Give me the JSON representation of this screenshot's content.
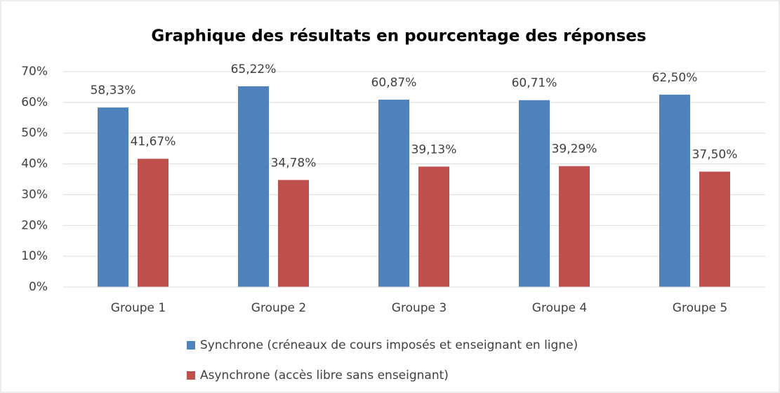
{
  "chart_data": {
    "type": "bar",
    "title": "Graphique des résultats en pourcentage des réponses",
    "categories": [
      "Groupe 1",
      "Groupe 2",
      "Groupe 3",
      "Groupe 4",
      "Groupe 5"
    ],
    "series": [
      {
        "name": "Synchrone (créneaux de cours imposés et enseignant en ligne)",
        "color": "#4f81bd",
        "values": [
          58.33,
          65.22,
          60.87,
          60.71,
          62.5
        ],
        "value_labels": [
          "58,33%",
          "65,22%",
          "60,87%",
          "60,71%",
          "62,50%"
        ]
      },
      {
        "name": "Asynchrone (accès libre sans enseignant)",
        "color": "#c0504d",
        "values": [
          41.67,
          34.78,
          39.13,
          39.29,
          37.5
        ],
        "value_labels": [
          "41,67%",
          "34,78%",
          "39,13%",
          "39,29%",
          "37,50%"
        ]
      }
    ],
    "ylim": [
      0,
      70
    ],
    "yticks": [
      {
        "value": 0,
        "label": "0%"
      },
      {
        "value": 10,
        "label": "10%"
      },
      {
        "value": 20,
        "label": "20%"
      },
      {
        "value": 30,
        "label": "30%"
      },
      {
        "value": 40,
        "label": "40%"
      },
      {
        "value": 50,
        "label": "50%"
      },
      {
        "value": 60,
        "label": "60%"
      },
      {
        "value": 70,
        "label": "70%"
      }
    ],
    "grid": true
  }
}
